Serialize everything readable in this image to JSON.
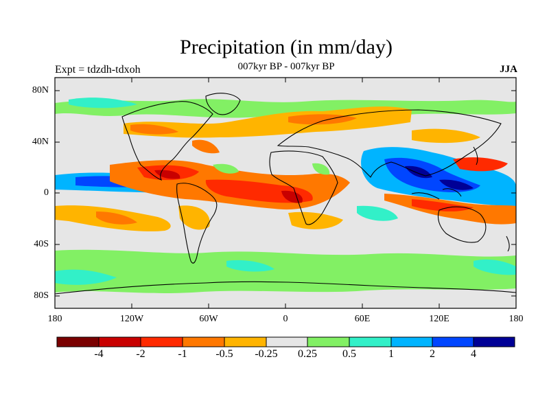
{
  "figure": {
    "title": "Precipitation (in mm/day)",
    "subtitle": "007kyr BP - 007kyr BP",
    "left_label": "Expt = tdzdh-tdxoh",
    "right_label": "JJA"
  },
  "map": {
    "projection": "cylindrical-equidistant",
    "lon_range": [
      -180,
      180
    ],
    "lat_range": [
      -90,
      90
    ],
    "x_ticks": [
      "180",
      "120W",
      "60W",
      "0",
      "60E",
      "120E",
      "180"
    ],
    "y_ticks": [
      "80N",
      "40N",
      "0",
      "40S",
      "80S"
    ],
    "background_color": "#e6e6e6",
    "coastline_color": "#000000"
  },
  "colorbar": {
    "labels": [
      "-4",
      "-2",
      "-1",
      "-0.5",
      "-0.25",
      "0.25",
      "0.5",
      "1",
      "2",
      "4"
    ],
    "colors": [
      "#7a0000",
      "#c80000",
      "#ff2a00",
      "#ff7800",
      "#ffb400",
      "#e6e6e6",
      "#82f064",
      "#32f0c8",
      "#00b4ff",
      "#0046ff",
      "#000096"
    ]
  }
}
